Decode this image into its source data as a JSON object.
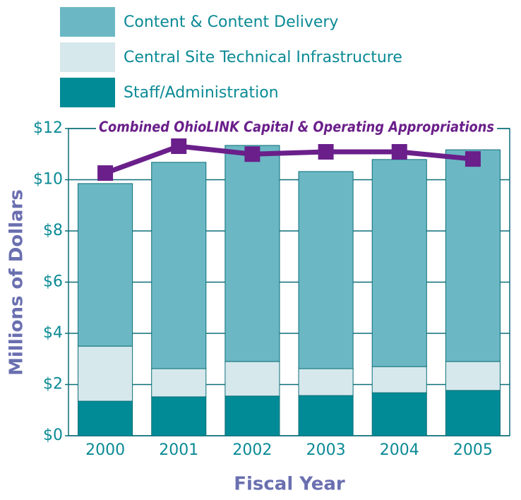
{
  "chart_data": {
    "type": "bar",
    "stacked": true,
    "xlabel": "Fiscal Year",
    "ylabel": "Millions of Dollars",
    "categories": [
      "2000",
      "2001",
      "2002",
      "2003",
      "2004",
      "2005"
    ],
    "series": [
      {
        "name": "Staff/Administration",
        "color": "#008b96",
        "values": [
          1.35,
          1.52,
          1.55,
          1.57,
          1.68,
          1.77
        ]
      },
      {
        "name": "Central Site Technical Infrastructure",
        "color": "#d6e8ec",
        "values": [
          2.15,
          1.1,
          1.35,
          1.05,
          1.02,
          1.13
        ]
      },
      {
        "name": "Content & Content Delivery",
        "color": "#6bb8c4",
        "values": [
          6.35,
          8.06,
          8.44,
          7.7,
          8.09,
          8.27
        ]
      },
      {
        "name": "Combined OhioLINK Capital & Operating Appropriations",
        "type": "line",
        "color": "#6a1f8a",
        "values": [
          10.26,
          11.31,
          11.0,
          11.09,
          11.09,
          10.81
        ]
      }
    ],
    "ylim": [
      0,
      12
    ],
    "yticks": [
      {
        "value": 0,
        "label": "$0"
      },
      {
        "value": 2,
        "label": "$2"
      },
      {
        "value": 4,
        "label": "$4"
      },
      {
        "value": 6,
        "label": "$6"
      },
      {
        "value": 8,
        "label": "$8"
      },
      {
        "value": 10,
        "label": "$10"
      },
      {
        "value": 12,
        "label": "$12"
      }
    ],
    "grid": true
  }
}
